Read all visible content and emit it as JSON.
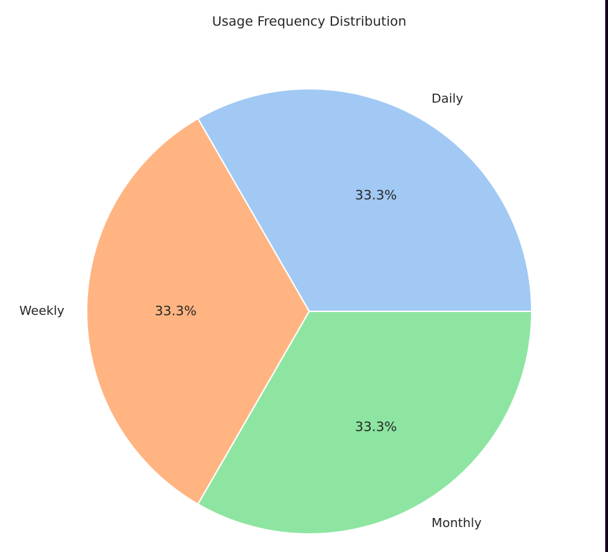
{
  "chart_data": {
    "type": "pie",
    "title": "Usage Frequency Distribution",
    "categories": [
      "Daily",
      "Weekly",
      "Monthly"
    ],
    "values": [
      1,
      1,
      1
    ],
    "percent_labels": [
      "33.3%",
      "33.3%",
      "33.3%"
    ],
    "colors": [
      "#a1c9f4",
      "#ffb482",
      "#8de5a1"
    ],
    "start_angle_deg": 0,
    "direction": "counterclockwise"
  }
}
